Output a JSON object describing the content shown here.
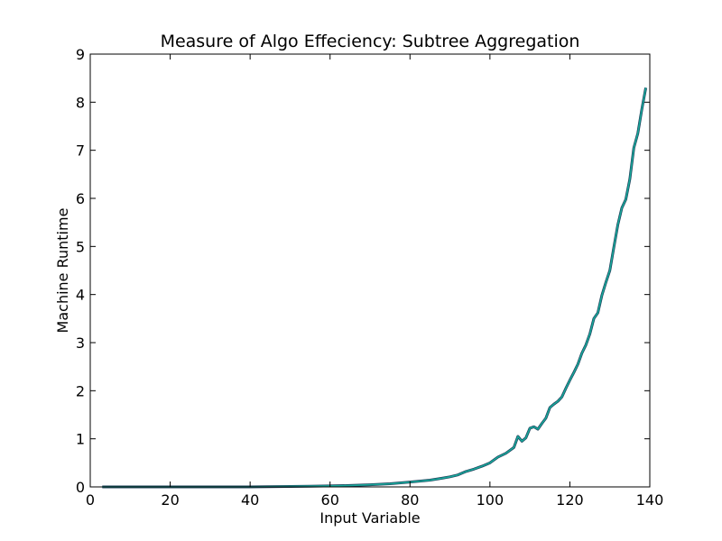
{
  "chart_data": {
    "type": "line",
    "title": "Measure of Algo Effeciency: Subtree Aggregation",
    "xlabel": "Input Variable",
    "ylabel": "Machine Runtime",
    "xlim": [
      0,
      140
    ],
    "ylim": [
      0,
      9
    ],
    "xticks": [
      "0",
      "20",
      "40",
      "60",
      "80",
      "100",
      "120",
      "140"
    ],
    "yticks": [
      "0",
      "1",
      "2",
      "3",
      "4",
      "5",
      "6",
      "7",
      "8",
      "9"
    ],
    "grid": false,
    "legend": "none",
    "series": [
      {
        "color": "#17a89a",
        "edge_color": "#1f3f5a",
        "x": [
          3,
          10,
          20,
          30,
          40,
          50,
          55,
          60,
          65,
          70,
          75,
          80,
          85,
          88,
          90,
          92,
          94,
          96,
          98,
          100,
          102,
          104,
          106,
          107,
          108,
          109,
          110,
          111,
          112,
          113,
          114,
          115,
          116,
          117,
          118,
          119,
          120,
          121,
          122,
          123,
          124,
          125,
          126,
          127,
          128,
          129,
          130,
          131,
          132,
          133,
          134,
          135,
          136,
          137,
          138,
          139
        ],
        "y": [
          0.0,
          0.0,
          0.0,
          0.0,
          0.0,
          0.01,
          0.015,
          0.02,
          0.03,
          0.045,
          0.065,
          0.1,
          0.14,
          0.18,
          0.21,
          0.25,
          0.32,
          0.37,
          0.43,
          0.5,
          0.62,
          0.7,
          0.82,
          1.05,
          0.95,
          1.02,
          1.22,
          1.25,
          1.2,
          1.32,
          1.43,
          1.65,
          1.72,
          1.78,
          1.87,
          2.05,
          2.22,
          2.38,
          2.55,
          2.78,
          2.95,
          3.18,
          3.5,
          3.62,
          3.98,
          4.25,
          4.5,
          4.98,
          5.45,
          5.8,
          5.98,
          6.4,
          7.05,
          7.35,
          7.85,
          8.3
        ]
      }
    ]
  }
}
